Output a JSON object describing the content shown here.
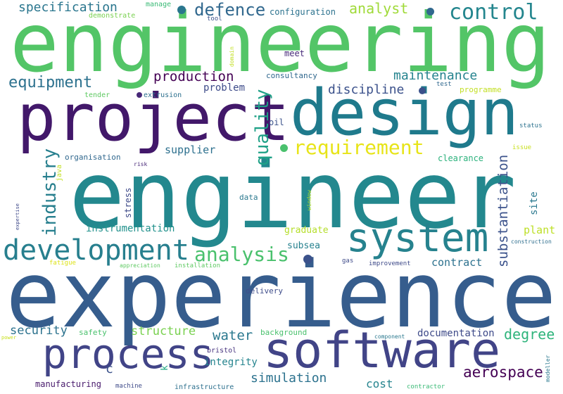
{
  "cloud": {
    "words": [
      {
        "text": "engineering",
        "color": "#53c567"
      },
      {
        "text": "engineer",
        "color": "#23888e"
      },
      {
        "text": "experience",
        "color": "#365d8d"
      },
      {
        "text": "project",
        "color": "#42186a"
      },
      {
        "text": "design",
        "color": "#1f7a8c"
      },
      {
        "text": "software",
        "color": "#414487"
      },
      {
        "text": "system",
        "color": "#26828e"
      },
      {
        "text": "process",
        "color": "#414487"
      },
      {
        "text": "development",
        "color": "#277f8e"
      },
      {
        "text": "control",
        "color": "#24868e"
      },
      {
        "text": "analysis",
        "color": "#4ac16d"
      },
      {
        "text": "requirement",
        "color": "#e7e419"
      },
      {
        "text": "defence",
        "color": "#31688e"
      },
      {
        "text": "equipment",
        "color": "#2c718e"
      },
      {
        "text": "production",
        "color": "#440154"
      },
      {
        "text": "maintenance",
        "color": "#25838e"
      },
      {
        "text": "specification",
        "color": "#2a768e"
      },
      {
        "text": "analyst",
        "color": "#a0da39"
      },
      {
        "text": "discipline",
        "color": "#3b518b"
      },
      {
        "text": "quality",
        "color": "#1fa187"
      },
      {
        "text": "industry",
        "color": "#277f8e"
      },
      {
        "text": "substantiation",
        "color": "#3b528b"
      },
      {
        "text": "aerospace",
        "color": "#440154"
      },
      {
        "text": "simulation",
        "color": "#2c728e"
      },
      {
        "text": "water",
        "color": "#2a788e"
      },
      {
        "text": "degree",
        "color": "#2fb47c"
      },
      {
        "text": "structure",
        "color": "#7ad151"
      },
      {
        "text": "security",
        "color": "#2c728e"
      },
      {
        "text": "contract",
        "color": "#2c718e"
      },
      {
        "text": "documentation",
        "color": "#3e4a89"
      },
      {
        "text": "supplier",
        "color": "#2d708e"
      },
      {
        "text": "instrumentation",
        "color": "#21918c"
      },
      {
        "text": "plant",
        "color": "#bddf26"
      },
      {
        "text": "site",
        "color": "#2a788e"
      },
      {
        "text": "integrity",
        "color": "#25848e"
      },
      {
        "text": "cost",
        "color": "#25848e"
      },
      {
        "text": "manufacturing",
        "color": "#481a6c"
      },
      {
        "text": "problem",
        "color": "#3e4c8a"
      },
      {
        "text": "configuration",
        "color": "#2c728e"
      },
      {
        "text": "subsea",
        "color": "#26818e"
      },
      {
        "text": "graduate",
        "color": "#b5de2b"
      },
      {
        "text": "oil",
        "color": "#3b528b"
      },
      {
        "text": "stress",
        "color": "#3e4a89"
      },
      {
        "text": "consultancy",
        "color": "#31688e"
      },
      {
        "text": "clearance",
        "color": "#2db27d"
      },
      {
        "text": "meet",
        "color": "#472a7a"
      },
      {
        "text": "organisation",
        "color": "#31688e"
      },
      {
        "text": "extrusion",
        "color": "#2d708e"
      },
      {
        "text": "tender",
        "color": "#5ec962"
      },
      {
        "text": "programme",
        "color": "#c2df23"
      },
      {
        "text": "test",
        "color": "#31688e"
      },
      {
        "text": "demonstrate",
        "color": "#7ad151"
      },
      {
        "text": "manage",
        "color": "#3aba76"
      },
      {
        "text": "tool",
        "color": "#3b528b"
      },
      {
        "text": "domain",
        "color": "#c2df23"
      },
      {
        "text": "risk",
        "color": "#482878"
      },
      {
        "text": "java",
        "color": "#c2df23"
      },
      {
        "text": "data",
        "color": "#2a788e"
      },
      {
        "text": "window",
        "color": "#addc30"
      },
      {
        "text": "status",
        "color": "#2c728e"
      },
      {
        "text": "issue",
        "color": "#c8e020"
      },
      {
        "text": "construction",
        "color": "#2e6e8e"
      },
      {
        "text": "improvement",
        "color": "#3e4a89"
      },
      {
        "text": "gas",
        "color": "#3e4a89"
      },
      {
        "text": "installation",
        "color": "#5ec962"
      },
      {
        "text": "appreciation",
        "color": "#5ec962"
      },
      {
        "text": "fatigue",
        "color": "#dde318"
      },
      {
        "text": "expertise",
        "color": "#3e4989"
      },
      {
        "text": "delivery",
        "color": "#3e4c8a"
      },
      {
        "text": "background",
        "color": "#4ac16d"
      },
      {
        "text": "safety",
        "color": "#4ac16d"
      },
      {
        "text": "bristol",
        "color": "#46327e"
      },
      {
        "text": "component",
        "color": "#2a788e"
      },
      {
        "text": "power",
        "color": "#c8e020"
      },
      {
        "text": "modeller",
        "color": "#2a788e"
      },
      {
        "text": "contractor",
        "color": "#3aba76"
      },
      {
        "text": "infrastructure",
        "color": "#2d708e"
      },
      {
        "text": "machine",
        "color": "#3e4a89"
      },
      {
        "text": "c",
        "color": "#3b528b"
      },
      {
        "text": "k",
        "color": "#22a884"
      }
    ],
    "dots": [
      {
        "color": "#2a768e"
      },
      {
        "color": "#31688e"
      },
      {
        "color": "#3b518b"
      },
      {
        "color": "#4ac16d"
      },
      {
        "color": "#3b528b"
      },
      {
        "color": "#482878"
      }
    ]
  }
}
